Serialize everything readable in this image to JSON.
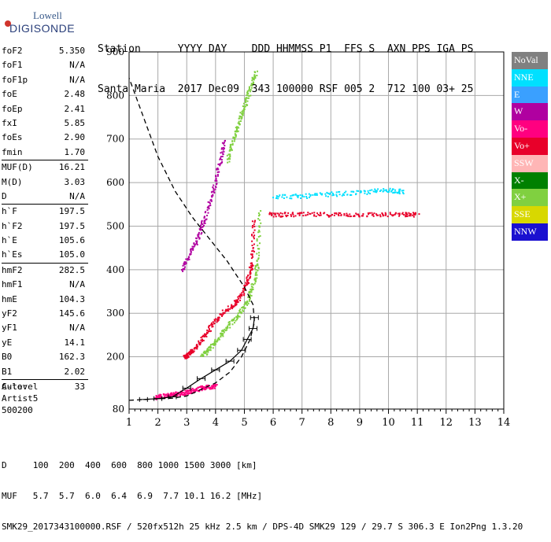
{
  "logo": {
    "top": "Lowell",
    "main": "DIGISONDE"
  },
  "header": {
    "row1": "Station      YYYY DAY    DDD HHMMSS P1  FFS S  AXN PPS IGA PS",
    "row2": "Santa Maria  2017 Dec09  343 100000 RSF 005 2  712 100 03+ 25"
  },
  "params_group1": [
    {
      "k": "foF2",
      "v": "5.350"
    },
    {
      "k": "foF1",
      "v": "N/A"
    },
    {
      "k": "foF1p",
      "v": "N/A"
    },
    {
      "k": "foE",
      "v": "2.48"
    },
    {
      "k": "foEp",
      "v": "2.41"
    },
    {
      "k": "fxI",
      "v": "5.85"
    },
    {
      "k": "foEs",
      "v": "2.90"
    },
    {
      "k": "fmin",
      "v": "1.70"
    }
  ],
  "params_group2": [
    {
      "k": "MUF(D)",
      "v": "16.21"
    },
    {
      "k": "M(D)",
      "v": "3.03"
    },
    {
      "k": "D",
      "v": "N/A"
    }
  ],
  "params_group3": [
    {
      "k": "h`F",
      "v": "197.5"
    },
    {
      "k": "h`F2",
      "v": "197.5"
    },
    {
      "k": "h`E",
      "v": "105.6"
    },
    {
      "k": "h`Es",
      "v": "105.0"
    }
  ],
  "params_group4": [
    {
      "k": "hmF2",
      "v": "282.5"
    },
    {
      "k": "hmF1",
      "v": "N/A"
    },
    {
      "k": "hmE",
      "v": "104.3"
    },
    {
      "k": "yF2",
      "v": "145.6"
    },
    {
      "k": "yF1",
      "v": "N/A"
    },
    {
      "k": "yE",
      "v": "14.1"
    },
    {
      "k": "B0",
      "v": "162.3"
    },
    {
      "k": "B1",
      "v": "2.02"
    }
  ],
  "params_group5": [
    {
      "k": "C-level",
      "v": "33"
    }
  ],
  "auto": {
    "line1": "Auto:",
    "line2": "Artist5",
    "line3": "500200"
  },
  "legend": [
    {
      "label": "NoVal",
      "bg": "#808080",
      "fg": "#ffffff"
    },
    {
      "label": "NNE",
      "bg": "#00e0ff",
      "fg": "#ffffff"
    },
    {
      "label": "E",
      "bg": "#3aa0ff",
      "fg": "#ffffff"
    },
    {
      "label": "W",
      "bg": "#b000a0",
      "fg": "#ffffff"
    },
    {
      "label": "Vo-",
      "bg": "#ff0080",
      "fg": "#ffffff"
    },
    {
      "label": "Vo+",
      "bg": "#e8002a",
      "fg": "#ffffff"
    },
    {
      "label": "SSW",
      "bg": "#ffb6b6",
      "fg": "#ffffff"
    },
    {
      "label": "X-",
      "bg": "#008000",
      "fg": "#ffffff"
    },
    {
      "label": "X+",
      "bg": "#80d040",
      "fg": "#ffffff"
    },
    {
      "label": "SSE",
      "bg": "#d8d800",
      "fg": "#ffffff"
    },
    {
      "label": "NNW",
      "bg": "#1a10d0",
      "fg": "#ffffff"
    }
  ],
  "footer": {
    "row1": "D     100  200  400  600  800 1000 1500 3000 [km]",
    "row2": "MUF   5.7  5.7  6.0  6.4  6.9  7.7 10.1 16.2 [MHz]",
    "row3": "SMK29_2017343100000.RSF / 520fx512h 25 kHz 2.5 km / DPS-4D SMK29 129 / 29.7 S 306.3 E Ion2Png 1.3.20"
  },
  "chart_data": {
    "type": "scatter",
    "xlim": [
      1,
      14
    ],
    "ylim": [
      80,
      900
    ],
    "x_ticks": [
      1,
      2,
      3,
      4,
      5,
      6,
      7,
      8,
      9,
      10,
      11,
      12,
      13,
      14
    ],
    "y_ticks": [
      80,
      200,
      300,
      400,
      500,
      600,
      700,
      800,
      900
    ],
    "grid": true,
    "profile_curve": {
      "x": [
        1.0,
        1.8,
        2.5,
        3.0,
        3.5,
        4.0,
        4.5,
        4.9,
        5.2,
        5.35,
        5.3,
        5.0,
        4.4,
        3.8,
        3.2,
        2.6,
        2.0,
        1.5,
        1.0
      ],
      "y": [
        100,
        103,
        105,
        110,
        125,
        140,
        165,
        200,
        240,
        280,
        320,
        360,
        420,
        470,
        520,
        580,
        660,
        750,
        840
      ]
    },
    "virtual_height_fit": {
      "x": [
        1.5,
        2.0,
        2.5,
        3.0,
        3.5,
        4.0,
        4.5,
        4.9,
        5.1,
        5.3,
        5.35
      ],
      "y": [
        102,
        104,
        108,
        128,
        150,
        170,
        190,
        215,
        240,
        265,
        290
      ]
    },
    "traces": [
      {
        "name": "F-trace (O)",
        "color": "#e8002a",
        "x": [
          2.9,
          3.0,
          3.2,
          3.5,
          3.8,
          4.2,
          4.6,
          4.9,
          5.1,
          5.25,
          5.3
        ],
        "y": [
          200,
          205,
          215,
          240,
          270,
          300,
          320,
          345,
          380,
          420,
          520
        ]
      },
      {
        "name": "F-trace (X)",
        "color": "#80d040",
        "x": [
          3.5,
          3.7,
          4.0,
          4.4,
          4.8,
          5.1,
          5.3,
          5.45,
          5.5
        ],
        "y": [
          205,
          215,
          240,
          270,
          300,
          330,
          370,
          420,
          540
        ]
      },
      {
        "name": "E/Es",
        "color": "#ff0080",
        "x": [
          1.9,
          2.2,
          2.5,
          2.8,
          3.1,
          3.4,
          3.7,
          4.0
        ],
        "y": [
          108,
          112,
          115,
          118,
          122,
          128,
          132,
          135
        ]
      },
      {
        "name": "2nd hop",
        "color": "#b000a0",
        "x": [
          2.8,
          3.1,
          3.4,
          3.6,
          3.9,
          4.1,
          4.3
        ],
        "y": [
          400,
          440,
          480,
          520,
          580,
          640,
          700
        ]
      },
      {
        "name": "2nd hop X",
        "color": "#80d040",
        "x": [
          4.4,
          4.6,
          4.8,
          5.0,
          5.2,
          5.4
        ],
        "y": [
          650,
          700,
          740,
          780,
          820,
          860
        ]
      },
      {
        "name": "spread F (cyan)",
        "color": "#00e0ff",
        "x": [
          6.0,
          7.0,
          8.0,
          9.0,
          10.0,
          10.5
        ],
        "y": [
          570,
          570,
          575,
          578,
          585,
          580
        ]
      },
      {
        "name": "spread F (red)",
        "color": "#e8002a",
        "x": [
          5.8,
          6.5,
          7.5,
          8.5,
          9.5,
          10.5,
          11.0
        ],
        "y": [
          528,
          528,
          528,
          528,
          528,
          528,
          528
        ]
      }
    ]
  }
}
